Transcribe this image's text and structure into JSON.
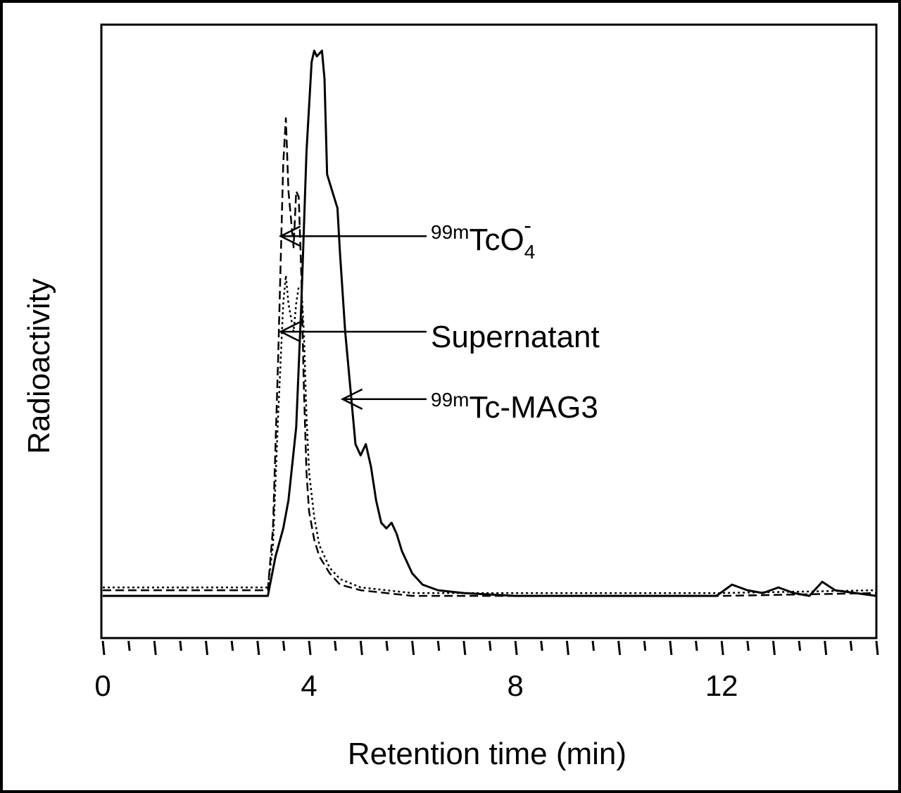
{
  "chart_data": {
    "type": "line",
    "xlabel": "Retention time (min)",
    "ylabel": "Radioactivity",
    "xlim": [
      0,
      15
    ],
    "ylim": [
      0,
      100
    ],
    "x_tick_labels": [
      "0",
      "4",
      "8",
      "12"
    ],
    "x_tick_label_values": [
      0,
      4,
      8,
      12
    ],
    "grid": false,
    "series": [
      {
        "line_style": "solid",
        "x": [
          0,
          3.2,
          3.35,
          3.5,
          3.6,
          3.75,
          3.85,
          3.95,
          4.05,
          4.1,
          4.15,
          4.25,
          4.3,
          4.35,
          4.45,
          4.55,
          4.6,
          4.7,
          4.8,
          4.9,
          5.0,
          5.1,
          5.2,
          5.3,
          5.4,
          5.5,
          5.6,
          5.7,
          5.8,
          6.0,
          6.2,
          6.5,
          7.0,
          8.0,
          10.0,
          11.9,
          12.2,
          12.5,
          12.8,
          13.1,
          13.4,
          13.7,
          13.95,
          14.2,
          14.6,
          15.0
        ],
        "y": [
          3,
          3,
          10,
          15,
          20,
          33,
          55,
          82,
          98,
          100,
          99,
          100,
          95,
          78,
          75,
          72,
          64,
          50,
          40,
          30,
          28,
          30,
          26,
          20,
          16,
          15,
          16,
          14,
          11,
          7,
          5,
          4,
          3.5,
          3,
          3,
          3,
          5,
          4,
          3.5,
          4.5,
          3.5,
          3,
          5.5,
          4,
          3.5,
          3
        ]
      },
      {
        "line_style": "dashed",
        "x": [
          0,
          3.2,
          3.3,
          3.4,
          3.5,
          3.55,
          3.6,
          3.7,
          3.75,
          3.8,
          3.85,
          3.9,
          3.95,
          4.0,
          4.1,
          4.2,
          4.4,
          4.6,
          5.0,
          5.5,
          6.0,
          7.0,
          8.0,
          10.0,
          12.0,
          15.0
        ],
        "y": [
          4,
          4,
          15,
          45,
          80,
          88,
          75,
          65,
          75,
          74,
          60,
          40,
          25,
          18,
          13,
          10,
          7,
          5,
          4,
          3.5,
          3,
          3,
          3,
          3,
          3,
          3.5
        ]
      },
      {
        "line_style": "dotted",
        "x": [
          0,
          3.2,
          3.3,
          3.4,
          3.5,
          3.55,
          3.6,
          3.7,
          3.75,
          3.8,
          3.85,
          3.9,
          3.95,
          4.0,
          4.1,
          4.2,
          4.4,
          4.6,
          5.0,
          5.5,
          6.0,
          7.0,
          8.0,
          10.0,
          12.0,
          15.0
        ],
        "y": [
          4.5,
          4.5,
          12,
          35,
          55,
          60,
          55,
          50,
          55,
          58,
          58,
          50,
          35,
          25,
          17,
          12,
          8,
          6,
          4.5,
          4,
          3.5,
          3.5,
          3.5,
          3.5,
          3.5,
          4
        ]
      }
    ],
    "annotations": [
      {
        "base": "99m",
        "main": "TcO",
        "superscript": "-",
        "subscript": "4",
        "arrow_to": [
          3.45,
          67
        ]
      },
      {
        "text": "Supernatant",
        "arrow_to": [
          3.45,
          50
        ]
      },
      {
        "base": "99m",
        "main": "Tc-MAG3",
        "arrow_to": [
          4.65,
          38
        ]
      }
    ]
  }
}
